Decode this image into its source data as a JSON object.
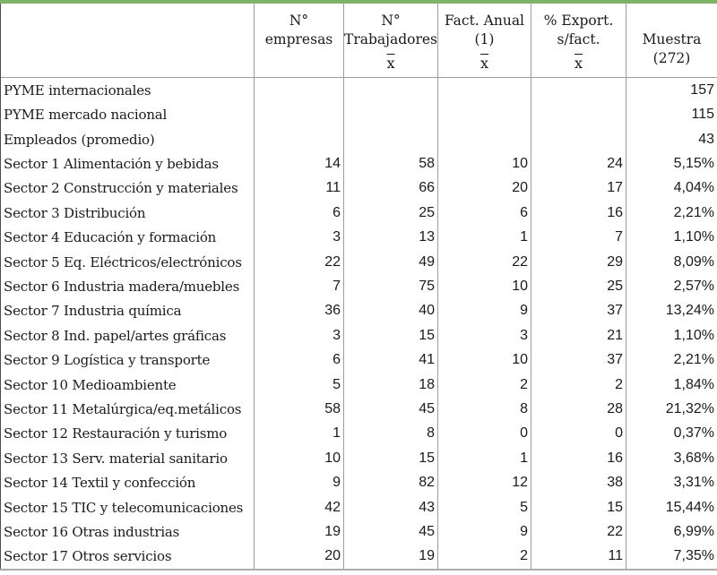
{
  "table": {
    "columns": [
      {
        "id": "row_label",
        "lines": []
      },
      {
        "id": "n_empresas",
        "lines": [
          "N°",
          "empresas"
        ]
      },
      {
        "id": "n_trabajadores",
        "lines": [
          "N°",
          "Trabajadores",
          "x̄"
        ]
      },
      {
        "id": "fact_anual",
        "lines": [
          "Fact. Anual",
          "(1)",
          "x̄"
        ]
      },
      {
        "id": "pct_export_s_fact",
        "lines": [
          "% Export.",
          "s/fact.",
          "x̄"
        ]
      },
      {
        "id": "muestra",
        "lines": [
          "",
          "Muestra",
          "(272)"
        ]
      }
    ],
    "rows": [
      {
        "label": "PYME internacionales",
        "values": [
          "",
          "",
          "",
          "",
          "157"
        ]
      },
      {
        "label": "PYME mercado nacional",
        "values": [
          "",
          "",
          "",
          "",
          "115"
        ]
      },
      {
        "label": "Empleados (promedio)",
        "values": [
          "",
          "",
          "",
          "",
          "43"
        ]
      },
      {
        "label": "Sector 1 Alimentación y bebidas",
        "values": [
          "14",
          "58",
          "10",
          "24",
          "5,15%"
        ]
      },
      {
        "label": "Sector 2 Construcción y materiales",
        "values": [
          "11",
          "66",
          "20",
          "17",
          "4,04%"
        ]
      },
      {
        "label": "Sector 3 Distribución",
        "values": [
          "6",
          "25",
          "6",
          "16",
          "2,21%"
        ]
      },
      {
        "label": "Sector 4 Educación y formación",
        "values": [
          "3",
          "13",
          "1",
          "7",
          "1,10%"
        ]
      },
      {
        "label": "Sector 5 Eq. Eléctricos/electrónicos",
        "values": [
          "22",
          "49",
          "22",
          "29",
          "8,09%"
        ]
      },
      {
        "label": "Sector 6 Industria madera/muebles",
        "values": [
          "7",
          "75",
          "10",
          "25",
          "2,57%"
        ]
      },
      {
        "label": "Sector 7 Industria química",
        "values": [
          "36",
          "40",
          "9",
          "37",
          "13,24%"
        ]
      },
      {
        "label": "Sector 8 Ind. papel/artes gráficas",
        "values": [
          "3",
          "15",
          "3",
          "21",
          "1,10%"
        ]
      },
      {
        "label": "Sector 9 Logística y transporte",
        "values": [
          "6",
          "41",
          "10",
          "37",
          "2,21%"
        ]
      },
      {
        "label": "Sector 10 Medioambiente",
        "values": [
          "5",
          "18",
          "2",
          "2",
          "1,84%"
        ]
      },
      {
        "label": "Sector 11 Metalúrgica/eq.metálicos",
        "values": [
          "58",
          "45",
          "8",
          "28",
          "21,32%"
        ]
      },
      {
        "label": "Sector 12 Restauración y turismo",
        "values": [
          "1",
          "8",
          "0",
          "0",
          "0,37%"
        ]
      },
      {
        "label": "Sector 13 Serv. material sanitario",
        "values": [
          "10",
          "15",
          "1",
          "16",
          "3,68%"
        ]
      },
      {
        "label": "Sector 14 Textil y confección",
        "values": [
          "9",
          "82",
          "12",
          "38",
          "3,31%"
        ]
      },
      {
        "label": "Sector 15 TIC y telecomunicaciones",
        "values": [
          "42",
          "43",
          "5",
          "15",
          "15,44%"
        ]
      },
      {
        "label": "Sector 16 Otras industrias",
        "values": [
          "19",
          "45",
          "9",
          "22",
          "6,99%"
        ]
      },
      {
        "label": "Sector 17 Otros servicios",
        "values": [
          "20",
          "19",
          "2",
          "11",
          "7,35%"
        ]
      }
    ]
  },
  "colors": {
    "top_rule": "#7eb466",
    "grid_line": "#9c9c9c",
    "bottom_rule": "#acacac",
    "text": "#1a1a1a"
  }
}
